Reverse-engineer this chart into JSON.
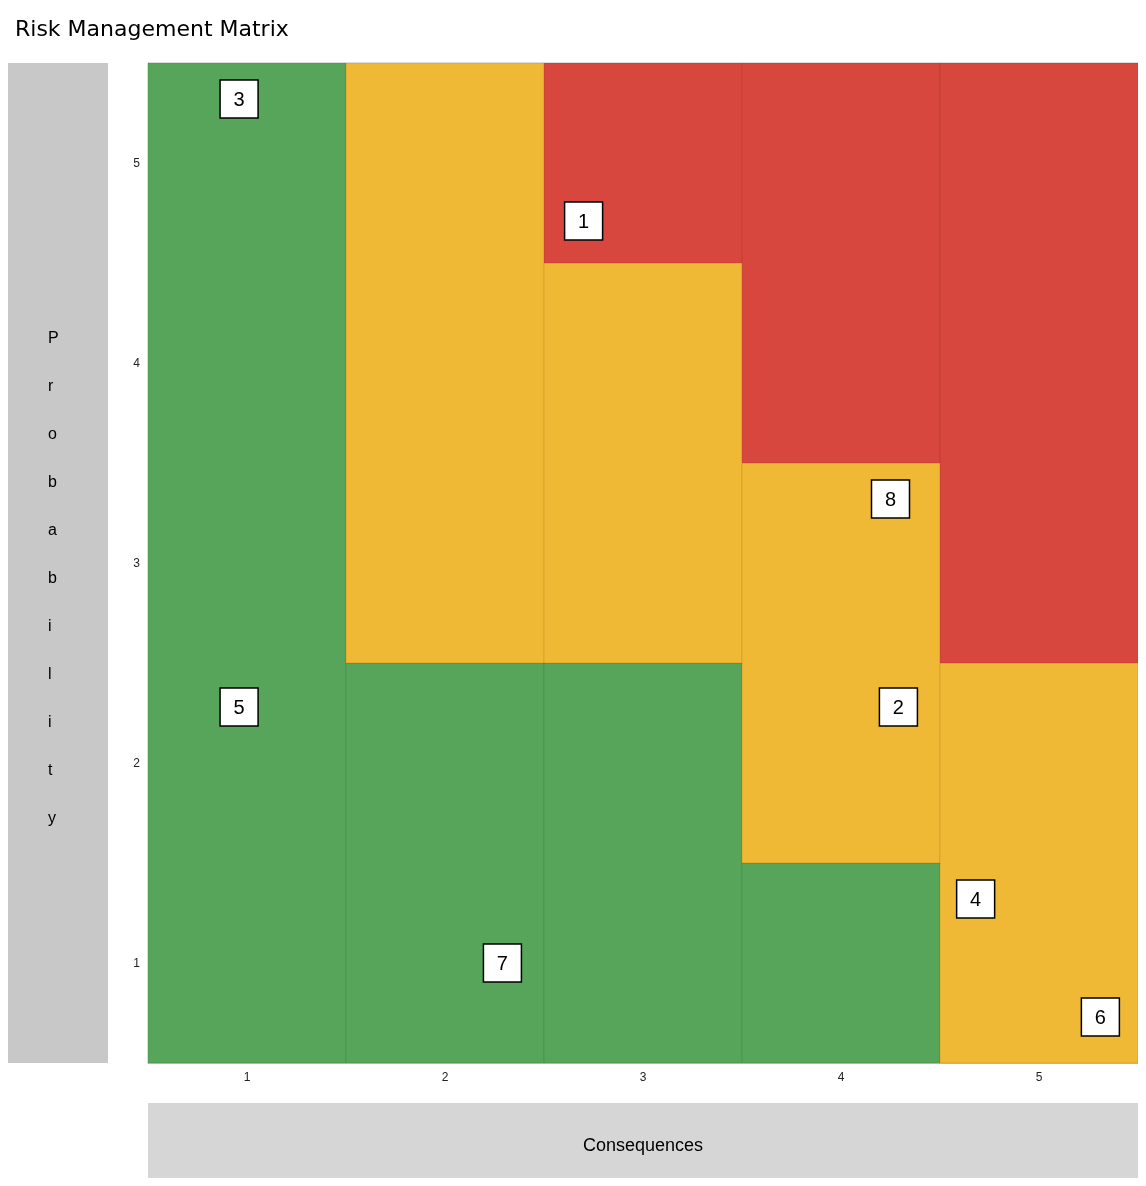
{
  "chart_data": {
    "type": "bar",
    "title": "Risk Management Matrix",
    "xlabel": "Consequences",
    "ylabel": "Probability",
    "x": [
      0.5,
      1.5,
      2.5,
      3.5,
      4.5
    ],
    "xlim": [
      0,
      5
    ],
    "xticks": [
      {
        "value": 0.5,
        "label": "1"
      },
      {
        "value": 1.5,
        "label": "2"
      },
      {
        "value": 2.5,
        "label": "3"
      },
      {
        "value": 3.5,
        "label": "4"
      },
      {
        "value": 4.5,
        "label": "5"
      }
    ],
    "ylim": [
      0,
      5
    ],
    "yticks": [
      {
        "value": 0.5,
        "label": "1"
      },
      {
        "value": 1.5,
        "label": "2"
      },
      {
        "value": 2.5,
        "label": "3"
      },
      {
        "value": 3.5,
        "label": "4"
      },
      {
        "value": 4.5,
        "label": "5"
      }
    ],
    "stacked": true,
    "marker": "square",
    "series": [
      {
        "color": "#57a55a",
        "values": [
          5,
          2,
          2,
          1,
          null
        ]
      },
      {
        "color": "#efb835",
        "values": [
          null,
          3,
          2,
          2,
          2
        ]
      },
      {
        "color": "#d8473d",
        "values": [
          null,
          null,
          1,
          2,
          3
        ]
      },
      {
        "type": "scatter",
        "name": "1",
        "x": [
          2.2
        ],
        "values": [
          4.21
        ]
      },
      {
        "type": "scatter",
        "name": "2",
        "x": [
          3.79
        ],
        "values": [
          1.78
        ]
      },
      {
        "type": "scatter",
        "name": "3",
        "x": [
          0.46
        ],
        "values": [
          4.82
        ]
      },
      {
        "type": "scatter",
        "name": "4",
        "x": [
          4.18
        ],
        "values": [
          0.82
        ]
      },
      {
        "type": "scatter",
        "name": "5",
        "x": [
          0.46
        ],
        "values": [
          1.78
        ]
      },
      {
        "type": "scatter",
        "name": "6",
        "x": [
          4.81
        ],
        "values": [
          0.23
        ]
      },
      {
        "type": "scatter",
        "name": "7",
        "x": [
          1.79
        ],
        "values": [
          0.5
        ]
      },
      {
        "type": "scatter",
        "name": "8",
        "x": [
          3.75
        ],
        "values": [
          2.82
        ]
      }
    ]
  }
}
